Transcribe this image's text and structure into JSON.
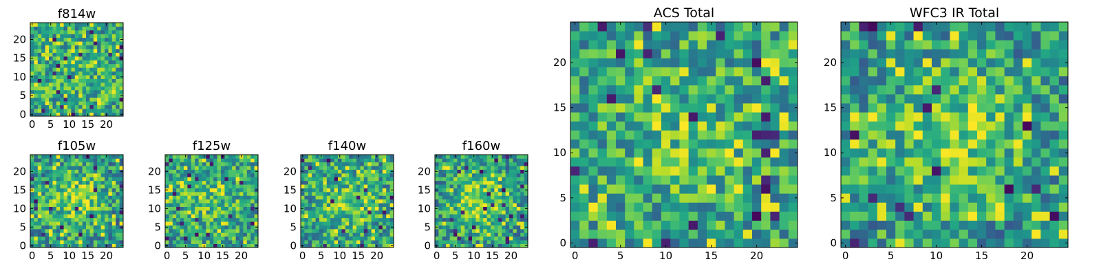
{
  "chart_data": [
    {
      "type": "heatmap",
      "title": "f814w",
      "grid_size": 25,
      "ylim": [
        -0.5,
        24.5
      ],
      "xlim": [
        -0.5,
        24.5
      ],
      "xticks": [
        0,
        5,
        10,
        15,
        20
      ],
      "yticks": [
        0,
        5,
        10,
        15,
        20
      ],
      "colormap": "viridis",
      "seed": 11,
      "blob": 0.1
    },
    {
      "type": "heatmap",
      "title": "f105w",
      "grid_size": 25,
      "ylim": [
        -0.5,
        24.5
      ],
      "xlim": [
        -0.5,
        24.5
      ],
      "xticks": [
        0,
        5,
        10,
        15,
        20
      ],
      "yticks": [
        0,
        5,
        10,
        15,
        20
      ],
      "colormap": "viridis",
      "seed": 23,
      "blob": 0.55
    },
    {
      "type": "heatmap",
      "title": "f125w",
      "grid_size": 25,
      "ylim": [
        -0.5,
        24.5
      ],
      "xlim": [
        -0.5,
        24.5
      ],
      "xticks": [
        0,
        5,
        10,
        15,
        20
      ],
      "yticks": [
        0,
        5,
        10,
        15,
        20
      ],
      "colormap": "viridis",
      "seed": 37,
      "blob": 0.25
    },
    {
      "type": "heatmap",
      "title": "f140w",
      "grid_size": 25,
      "ylim": [
        -0.5,
        24.5
      ],
      "xlim": [
        -0.5,
        24.5
      ],
      "xticks": [
        0,
        5,
        10,
        15,
        20
      ],
      "yticks": [
        0,
        5,
        10,
        15,
        20
      ],
      "colormap": "viridis",
      "seed": 41,
      "blob": 0.3
    },
    {
      "type": "heatmap",
      "title": "f160w",
      "grid_size": 25,
      "ylim": [
        -0.5,
        24.5
      ],
      "xlim": [
        -0.5,
        24.5
      ],
      "xticks": [
        0,
        5,
        10,
        15,
        20
      ],
      "yticks": [
        0,
        5,
        10,
        15,
        20
      ],
      "colormap": "viridis",
      "seed": 53,
      "blob": 0.5
    },
    {
      "type": "heatmap",
      "title": "ACS Total",
      "grid_size": 25,
      "ylim": [
        -0.5,
        24.5
      ],
      "xlim": [
        -0.5,
        24.5
      ],
      "xticks": [
        0,
        5,
        10,
        15,
        20
      ],
      "yticks": [
        0,
        5,
        10,
        15,
        20
      ],
      "colormap": "viridis",
      "seed": 67,
      "blob": 0.2
    },
    {
      "type": "heatmap",
      "title": "WFC3 IR Total",
      "grid_size": 25,
      "ylim": [
        -0.5,
        24.5
      ],
      "xlim": [
        -0.5,
        24.5
      ],
      "xticks": [
        0,
        5,
        10,
        15,
        20
      ],
      "yticks": [
        0,
        5,
        10,
        15,
        20
      ],
      "colormap": "viridis",
      "seed": 79,
      "blob": 0.45
    }
  ]
}
